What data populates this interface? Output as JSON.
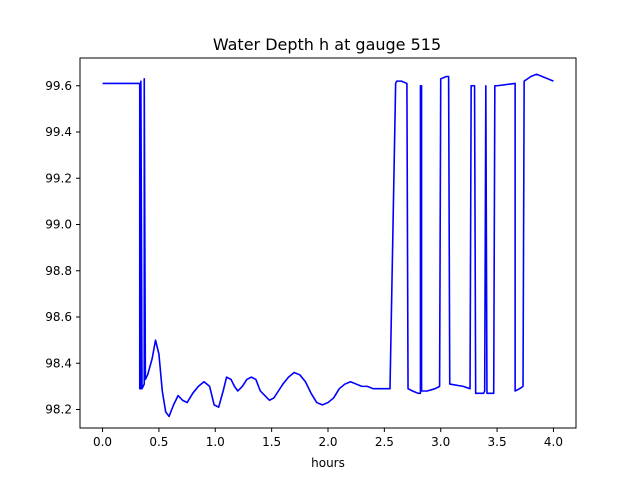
{
  "chart_data": {
    "type": "line",
    "title": "Water Depth h at gauge 515",
    "xlabel": "hours",
    "ylabel": "",
    "xlim": [
      -0.2,
      4.2
    ],
    "ylim": [
      98.12,
      99.72
    ],
    "xticks": [
      0.0,
      0.5,
      1.0,
      1.5,
      2.0,
      2.5,
      3.0,
      3.5,
      4.0
    ],
    "xtick_labels": [
      "0.0",
      "0.5",
      "1.0",
      "1.5",
      "2.0",
      "2.5",
      "3.0",
      "3.5",
      "4.0"
    ],
    "yticks": [
      98.2,
      98.4,
      98.6,
      98.8,
      99.0,
      99.2,
      99.4,
      99.6
    ],
    "ytick_labels": [
      "98.2",
      "98.4",
      "98.6",
      "98.8",
      "99.0",
      "99.2",
      "99.4",
      "99.6"
    ],
    "grid": false,
    "legend": "none",
    "color": "#0000ff",
    "series": [
      {
        "x": [
          0.0,
          0.33,
          0.33,
          0.34,
          0.34,
          0.35,
          0.36,
          0.37,
          0.37,
          0.38,
          0.38,
          0.4,
          0.44,
          0.47,
          0.5,
          0.53,
          0.56,
          0.59,
          0.63,
          0.67,
          0.71,
          0.75,
          0.8,
          0.85,
          0.9,
          0.95,
          0.99,
          1.03,
          1.07,
          1.1,
          1.14,
          1.17,
          1.2,
          1.24,
          1.28,
          1.32,
          1.36,
          1.4,
          1.44,
          1.48,
          1.52,
          1.56,
          1.6,
          1.65,
          1.7,
          1.75,
          1.8,
          1.85,
          1.9,
          1.95,
          2.0,
          2.05,
          2.1,
          2.15,
          2.2,
          2.25,
          2.3,
          2.35,
          2.4,
          2.45,
          2.5,
          2.55,
          2.6,
          2.61,
          2.65,
          2.7,
          2.71,
          2.75,
          2.8,
          2.82,
          2.82,
          2.83,
          2.83,
          2.88,
          2.95,
          2.99,
          3.0,
          3.05,
          3.07,
          3.08,
          3.2,
          3.26,
          3.27,
          3.3,
          3.31,
          3.38,
          3.39,
          3.4,
          3.4,
          3.41,
          3.47,
          3.48,
          3.5,
          3.66,
          3.66,
          3.7,
          3.73,
          3.74,
          3.8,
          3.85,
          3.9,
          3.95,
          4.0
        ],
        "y": [
          99.61,
          99.61,
          98.29,
          98.29,
          99.62,
          98.29,
          98.3,
          98.31,
          99.63,
          98.33,
          98.33,
          98.35,
          98.42,
          98.5,
          98.44,
          98.28,
          98.19,
          98.17,
          98.22,
          98.26,
          98.24,
          98.23,
          98.27,
          98.3,
          98.32,
          98.3,
          98.22,
          98.21,
          98.28,
          98.34,
          98.33,
          98.3,
          98.28,
          98.3,
          98.33,
          98.34,
          98.33,
          98.28,
          98.26,
          98.24,
          98.25,
          98.28,
          98.31,
          98.34,
          98.36,
          98.35,
          98.32,
          98.27,
          98.23,
          98.22,
          98.23,
          98.25,
          98.29,
          98.31,
          98.32,
          98.31,
          98.3,
          98.3,
          98.29,
          98.29,
          98.29,
          98.29,
          99.61,
          99.62,
          99.62,
          99.61,
          98.29,
          98.28,
          98.27,
          98.27,
          99.6,
          99.6,
          98.28,
          98.28,
          98.29,
          98.3,
          99.63,
          99.64,
          99.64,
          98.31,
          98.3,
          98.29,
          99.6,
          99.6,
          98.27,
          98.27,
          98.28,
          99.6,
          99.6,
          98.27,
          98.27,
          99.6,
          99.6,
          99.61,
          98.28,
          98.29,
          98.3,
          99.62,
          99.64,
          99.65,
          99.64,
          99.63,
          99.62
        ]
      }
    ]
  }
}
